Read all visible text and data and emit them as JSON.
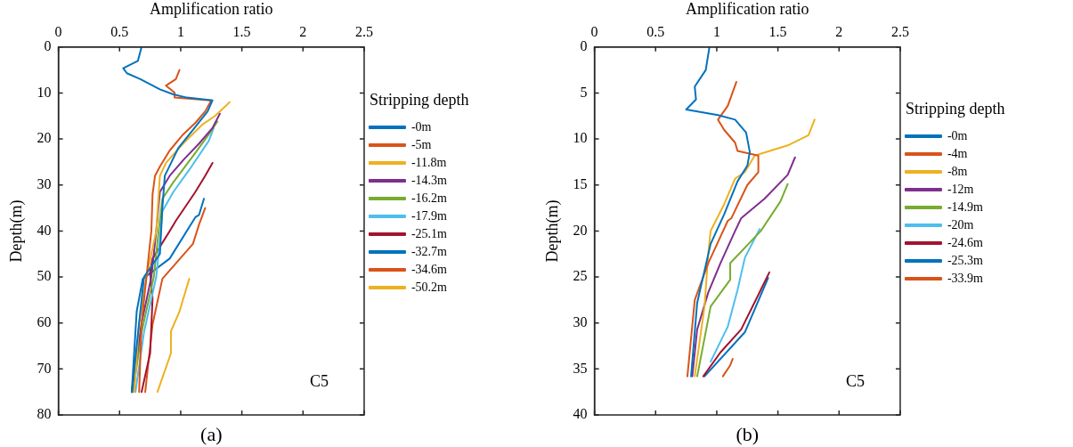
{
  "chart_data": [
    {
      "type": "line",
      "xlabel": "Amplification ratio",
      "ylabel": "Depth(m)",
      "legend_title": "Stripping depth",
      "legend": "right",
      "grid": false,
      "marker": "none",
      "line_style": "solid",
      "xlim": [
        0,
        2.5
      ],
      "xticks": [
        0,
        0.5,
        1,
        1.5,
        2,
        2.5
      ],
      "ylim": [
        80,
        0
      ],
      "yticks": [
        0,
        10,
        20,
        30,
        40,
        50,
        60,
        70,
        80
      ],
      "annotations": [
        "C5",
        "(a)"
      ],
      "series": [
        {
          "name": "-0m",
          "color": "#0072bd",
          "x": [
            0.68,
            0.65,
            0.53,
            0.56,
            0.67,
            0.83,
            0.94,
            1.05,
            1.26,
            1.22,
            1.1,
            0.98,
            0.87,
            0.85,
            0.83,
            0.7,
            0.66,
            0.6
          ],
          "values": [
            0,
            3,
            4.6,
            5.7,
            7,
            9.2,
            10.3,
            11,
            11.6,
            14,
            18,
            22,
            28,
            35,
            45,
            50,
            60,
            75
          ]
        },
        {
          "name": "-5m",
          "color": "#d95319",
          "x": [
            0.99,
            0.96,
            0.88,
            0.95,
            0.95,
            1.25,
            1.2,
            1.12,
            1.02,
            0.91,
            0.83,
            0.79,
            0.77,
            0.76,
            0.72,
            0.68,
            0.66
          ],
          "values": [
            5,
            7,
            8.4,
            9.9,
            11,
            11.6,
            14,
            16.5,
            19,
            22.5,
            26,
            28,
            32,
            40,
            50,
            60,
            75
          ]
        },
        {
          "name": "-11.8m",
          "color": "#edb120",
          "x": [
            1.4,
            1.28,
            1.18,
            1.02,
            0.88,
            0.83,
            0.82,
            0.8,
            0.72,
            0.66,
            0.62
          ],
          "values": [
            12,
            15,
            16.8,
            21,
            25.2,
            28,
            32,
            40,
            50,
            60,
            75
          ]
        },
        {
          "name": "-14.3m",
          "color": "#7e2f8e",
          "x": [
            1.32,
            1.26,
            1.15,
            1.02,
            0.91,
            0.83,
            0.8,
            0.76,
            0.68,
            0.6
          ],
          "values": [
            14.5,
            17.6,
            21,
            24.6,
            28,
            31.5,
            40,
            50,
            60,
            75
          ]
        },
        {
          "name": "-16.2m",
          "color": "#77ac30",
          "x": [
            1.3,
            1.23,
            1.12,
            0.94,
            0.85,
            0.82,
            0.78,
            0.68,
            0.61
          ],
          "values": [
            16.2,
            19,
            23,
            29.4,
            33,
            40,
            50,
            62,
            75
          ]
        },
        {
          "name": "-17.9m",
          "color": "#4dbeee",
          "x": [
            1.27,
            1.23,
            1.07,
            0.94,
            0.85,
            0.83,
            0.8,
            0.7,
            0.63
          ],
          "values": [
            17.6,
            20.4,
            26.7,
            31.5,
            35.7,
            42,
            50,
            62,
            75
          ]
        },
        {
          "name": "-25.1m",
          "color": "#a2142f",
          "x": [
            1.26,
            1.2,
            1.12,
            0.96,
            0.91,
            0.77,
            0.75,
            0.77,
            0.75,
            0.68
          ],
          "values": [
            25.2,
            28,
            31.5,
            37.8,
            40,
            46,
            49,
            54.6,
            66.6,
            75
          ]
        },
        {
          "name": "-32.7m",
          "color": "#0072bd",
          "x": [
            1.19,
            1.15,
            1.12,
            0.91,
            0.69,
            0.64,
            0.6
          ],
          "values": [
            33,
            36.5,
            37,
            46,
            50.4,
            57.5,
            75
          ]
        },
        {
          "name": "-34.6m",
          "color": "#d95319",
          "x": [
            1.2,
            1.15,
            1.1,
            0.85,
            0.77,
            0.71
          ],
          "values": [
            35,
            38.6,
            42.8,
            50.4,
            60.3,
            75
          ]
        },
        {
          "name": "-50.2m",
          "color": "#edb120",
          "x": [
            1.07,
            0.99,
            0.92,
            0.92,
            0.81
          ],
          "values": [
            50.4,
            57.5,
            61.8,
            66.6,
            75
          ]
        }
      ]
    },
    {
      "type": "line",
      "xlabel": "Amplification ratio",
      "ylabel": "Depth(m)",
      "legend_title": "Stripping depth",
      "legend": "right",
      "grid": false,
      "marker": "none",
      "line_style": "solid",
      "xlim": [
        0,
        2.5
      ],
      "xticks": [
        0,
        0.5,
        1,
        1.5,
        2,
        2.5
      ],
      "ylim": [
        40,
        0
      ],
      "yticks": [
        0,
        5,
        10,
        15,
        20,
        25,
        30,
        35,
        40
      ],
      "annotations": [
        "C5",
        "(b)"
      ],
      "series": [
        {
          "name": "-0m",
          "color": "#0072bd",
          "x": [
            0.94,
            0.91,
            0.82,
            0.83,
            0.75,
            1.01,
            1.15,
            1.24,
            1.27,
            1.25,
            1.17,
            1.06,
            0.95,
            0.84,
            0.79
          ],
          "values": [
            0,
            2.5,
            4.3,
            5.7,
            6.8,
            7.4,
            7.9,
            9.3,
            11.4,
            12.9,
            14.6,
            18.2,
            21.4,
            27.8,
            35.8
          ]
        },
        {
          "name": "-4m",
          "color": "#d95319",
          "x": [
            1.16,
            1.09,
            1.01,
            1.06,
            1.15,
            1.17,
            1.34,
            1.34,
            1.25,
            1.12,
            1.09,
            0.93,
            0.82,
            0.76
          ],
          "values": [
            3.8,
            6.4,
            7.9,
            9,
            10.4,
            11.3,
            11.8,
            13.6,
            15,
            18.6,
            18.9,
            23.5,
            27.5,
            35.8
          ]
        },
        {
          "name": "-8m",
          "color": "#edb120",
          "x": [
            1.8,
            1.75,
            1.58,
            1.31,
            1.23,
            1.15,
            1.06,
            0.95,
            0.93,
            0.9,
            0.82
          ],
          "values": [
            7.9,
            9.6,
            10.7,
            11.8,
            13.6,
            14.3,
            17.1,
            20,
            22.5,
            28.2,
            35.8
          ]
        },
        {
          "name": "-12m",
          "color": "#7e2f8e",
          "x": [
            1.64,
            1.58,
            1.39,
            1.2,
            1.15,
            1.03,
            0.93,
            0.84,
            0.8
          ],
          "values": [
            12,
            13.9,
            16.5,
            18.6,
            20,
            23.5,
            26.7,
            30.7,
            35.8
          ]
        },
        {
          "name": "-14.9m",
          "color": "#77ac30",
          "x": [
            1.58,
            1.52,
            1.36,
            1.31,
            1.11,
            1.11,
            0.95,
            0.84
          ],
          "values": [
            14.9,
            16.8,
            20,
            20.7,
            23.5,
            25.3,
            28.2,
            35.8
          ]
        },
        {
          "name": "-20m",
          "color": "#4dbeee",
          "x": [
            1.35,
            1.23,
            1.17,
            1.09,
            0.95
          ],
          "values": [
            19.8,
            22.9,
            26.4,
            30.4,
            34.2
          ]
        },
        {
          "name": "-24.6m",
          "color": "#a2142f",
          "x": [
            1.43,
            1.36,
            1.2,
            1.03,
            0.89
          ],
          "values": [
            24.5,
            26.4,
            30.7,
            33.2,
            35.8
          ]
        },
        {
          "name": "-25.3m",
          "color": "#0072bd",
          "x": [
            1.42,
            1.23,
            0.9
          ],
          "values": [
            25.1,
            31,
            35.8
          ]
        },
        {
          "name": "-33.9m",
          "color": "#d95319",
          "x": [
            1.13,
            1.11,
            1.05
          ],
          "values": [
            33.9,
            34.6,
            35.8
          ]
        }
      ]
    }
  ]
}
